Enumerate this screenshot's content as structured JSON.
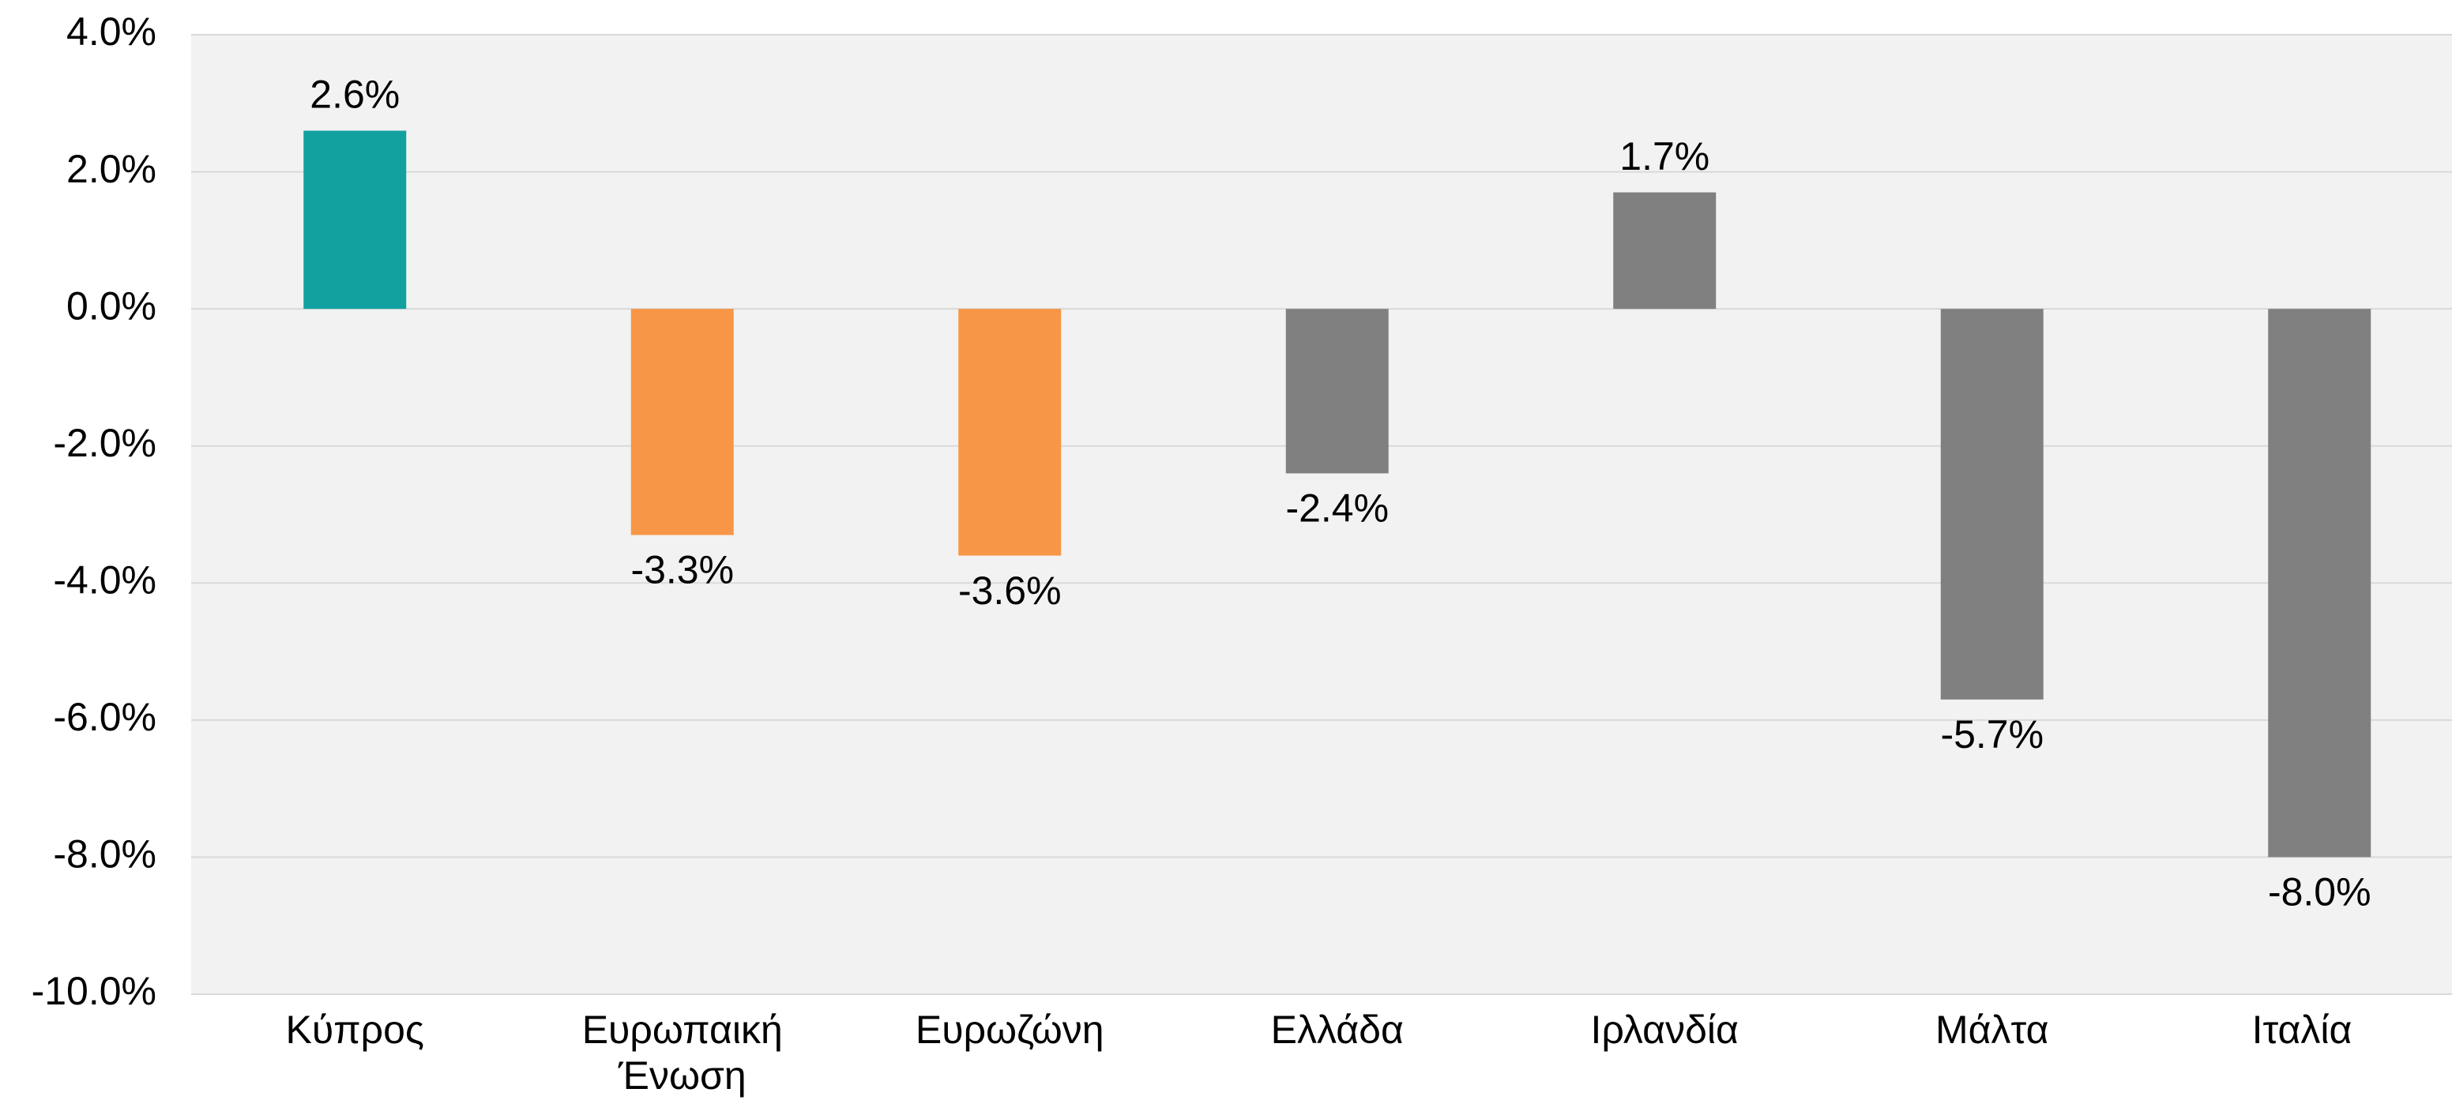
{
  "chart_data": {
    "type": "bar",
    "categories": [
      "Κύπρος",
      "Ευρωπαική Ένωση",
      "Ευρωζώνη",
      "Ελλάδα",
      "Ιρλανδία",
      "Μάλτα",
      "Ιταλία"
    ],
    "values": [
      2.6,
      -3.3,
      -3.6,
      -2.4,
      1.7,
      -5.7,
      -8.0
    ],
    "value_labels": [
      "2.6%",
      "-3.3%",
      "-3.6%",
      "-2.4%",
      "1.7%",
      "-5.7%",
      "-8.0%"
    ],
    "colors": [
      "#12a19f",
      "#f79646",
      "#f79646",
      "#808080",
      "#808080",
      "#808080",
      "#808080"
    ],
    "ylim": [
      -10,
      4
    ],
    "yticks": [
      {
        "value": -10,
        "label": "-10.0%"
      },
      {
        "value": -8,
        "label": "-8.0%"
      },
      {
        "value": -6,
        "label": "-6.0%"
      },
      {
        "value": -4,
        "label": "-4.0%"
      },
      {
        "value": -2,
        "label": "-2.0%"
      },
      {
        "value": 0,
        "label": "0.0%"
      },
      {
        "value": 2,
        "label": "2.0%"
      },
      {
        "value": 4,
        "label": "4.0%"
      }
    ],
    "grid": true
  }
}
